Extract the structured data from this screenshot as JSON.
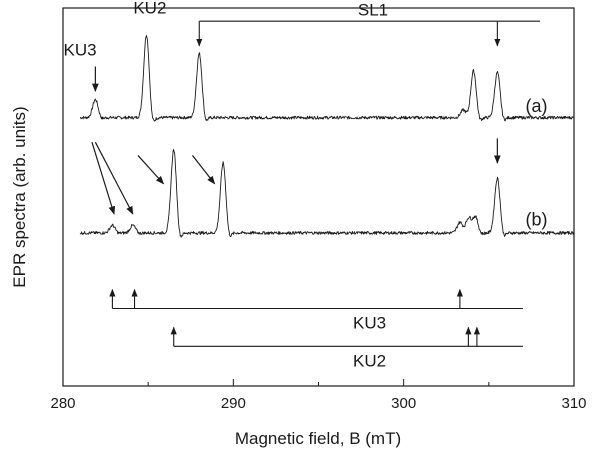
{
  "chart_data": {
    "type": "line",
    "xlabel": "Magnetic field, B (mT)",
    "ylabel": "EPR spectra (arb. units)",
    "xlim": [
      280,
      310
    ],
    "xticks": [
      280,
      290,
      300,
      310
    ],
    "grid": false,
    "series": [
      {
        "name": "(a)",
        "baseline": 0.71,
        "peaks": [
          {
            "x": 281.9,
            "h": 0.048
          },
          {
            "x": 284.9,
            "h": 0.22
          },
          {
            "x": 288.0,
            "h": 0.17
          },
          {
            "x": 303.5,
            "h": 0.02
          },
          {
            "x": 304.1,
            "h": 0.124
          },
          {
            "x": 305.5,
            "h": 0.12
          }
        ]
      },
      {
        "name": "(b)",
        "baseline": 0.405,
        "peaks": [
          {
            "x": 282.9,
            "h": 0.02
          },
          {
            "x": 284.1,
            "h": 0.02
          },
          {
            "x": 286.5,
            "h": 0.22
          },
          {
            "x": 289.4,
            "h": 0.185
          },
          {
            "x": 303.3,
            "h": 0.028
          },
          {
            "x": 303.8,
            "h": 0.04
          },
          {
            "x": 304.2,
            "h": 0.045
          },
          {
            "x": 305.5,
            "h": 0.145
          }
        ]
      }
    ],
    "annotations": {
      "labels": [
        {
          "text": "KU3",
          "x": 281.0,
          "y": 0.875
        },
        {
          "text": "KU2",
          "x": 285.1,
          "y": 0.985
        },
        {
          "text": "SL1",
          "x": 298.2,
          "y": 0.98
        }
      ],
      "stick_diagrams": [
        {
          "name": "SL1",
          "label_key": "SL1",
          "positions": [
            288.0,
            305.5
          ],
          "line_y": 0.965,
          "end_x": 308.0,
          "direction": "down",
          "arrow_to_y": 0.9
        },
        {
          "name": "KU3",
          "label": "KU3",
          "positions": [
            282.9,
            284.2,
            303.3
          ],
          "line_y": 0.205,
          "end_x": 307.0,
          "direction": "up",
          "arrow_to_y": 0.255,
          "label_x": 298.0
        },
        {
          "name": "KU2",
          "label": "KU2",
          "positions": [
            286.5,
            303.8,
            304.3
          ],
          "line_y": 0.105,
          "end_x": 307.0,
          "direction": "up",
          "arrow_to_y": 0.155,
          "label_x": 298.0
        }
      ],
      "arrows": [
        {
          "from": [
            281.9,
            0.845
          ],
          "to": [
            281.9,
            0.78
          ]
        },
        {
          "from": [
            281.7,
            0.645
          ],
          "to": [
            283.0,
            0.455
          ]
        },
        {
          "from": [
            281.9,
            0.645
          ],
          "to": [
            284.1,
            0.455
          ]
        },
        {
          "from": [
            284.4,
            0.61
          ],
          "to": [
            285.9,
            0.535
          ]
        },
        {
          "from": [
            287.6,
            0.61
          ],
          "to": [
            288.9,
            0.535
          ]
        },
        {
          "from": [
            305.5,
            0.655
          ],
          "to": [
            305.5,
            0.59
          ]
        }
      ],
      "spectrum_labels": [
        {
          "text": "(a)",
          "x": 307.8,
          "y": 0.725
        },
        {
          "text": "(b)",
          "x": 307.8,
          "y": 0.425
        }
      ]
    }
  }
}
